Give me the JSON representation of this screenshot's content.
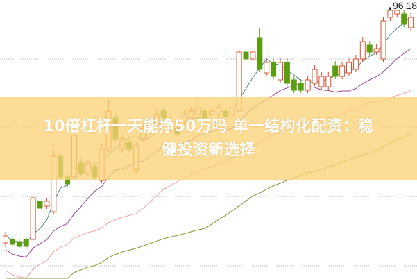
{
  "headline": {
    "line1": "10倍杠杆一天能挣50万吗 单一结构化配资：稳",
    "line2": "健投资新选择"
  },
  "chart_data": {
    "type": "candlestick",
    "ylim": [
      57.2,
      97.4
    ],
    "grid": "dotted horizontal",
    "max_label": "96.18",
    "colors": {
      "up": "#d9512c",
      "down": "#5a9e0f",
      "ma5": "#4a8a8a",
      "ma10": "#9b3fa0",
      "ma20": "#f0a0a0",
      "ma30": "#7a9a2a",
      "band": "#fcd278"
    },
    "moving_averages": [
      5,
      10,
      20,
      30
    ],
    "ohlc": [
      [
        62.4,
        63.4,
        64.0,
        61.8
      ],
      [
        62.9,
        62.2,
        63.3,
        61.9
      ],
      [
        62.6,
        61.9,
        62.9,
        61.6
      ],
      [
        62.9,
        61.9,
        63.4,
        61.5
      ],
      [
        62.9,
        68.9,
        69.6,
        62.5
      ],
      [
        68.4,
        67.4,
        69.0,
        67.0
      ],
      [
        67.7,
        68.4,
        68.9,
        67.3
      ],
      [
        66.9,
        74.9,
        75.8,
        66.5
      ],
      [
        74.9,
        71.9,
        75.4,
        71.5
      ],
      [
        71.9,
        70.9,
        72.5,
        70.5
      ],
      [
        71.9,
        77.9,
        78.6,
        71.5
      ],
      [
        73.9,
        72.4,
        74.5,
        72.0
      ],
      [
        72.4,
        73.9,
        74.4,
        72.0
      ],
      [
        73.4,
        71.9,
        74.0,
        71.5
      ],
      [
        71.4,
        75.9,
        76.6,
        71.0
      ],
      [
        75.9,
        81.4,
        83.0,
        75.4
      ],
      [
        80.4,
        77.4,
        81.0,
        77.0
      ],
      [
        75.9,
        77.4,
        78.0,
        75.4
      ],
      [
        76.9,
        75.9,
        77.4,
        75.5
      ],
      [
        72.9,
        76.4,
        77.0,
        72.4
      ],
      [
        77.4,
        78.9,
        79.5,
        77.0
      ],
      [
        78.4,
        79.4,
        80.0,
        78.0
      ],
      [
        79.4,
        80.9,
        81.6,
        79.0
      ],
      [
        81.4,
        80.4,
        82.0,
        80.0
      ],
      [
        78.9,
        79.9,
        80.5,
        78.4
      ],
      [
        78.9,
        78.1,
        79.4,
        77.6
      ],
      [
        79.9,
        80.9,
        81.5,
        79.4
      ],
      [
        80.4,
        81.4,
        82.0,
        80.0
      ],
      [
        80.9,
        81.9,
        83.4,
        80.5
      ],
      [
        81.4,
        80.4,
        82.0,
        80.0
      ],
      [
        80.9,
        81.4,
        82.0,
        80.5
      ],
      [
        80.9,
        81.9,
        82.5,
        80.4
      ],
      [
        81.4,
        80.6,
        82.0,
        80.0
      ],
      [
        80.9,
        81.9,
        82.5,
        80.4
      ],
      [
        81.4,
        89.9,
        90.5,
        81.0
      ],
      [
        89.9,
        88.9,
        90.5,
        88.5
      ],
      [
        88.9,
        89.9,
        90.6,
        88.4
      ],
      [
        91.9,
        87.4,
        93.4,
        87.0
      ],
      [
        86.9,
        88.4,
        89.0,
        86.4
      ],
      [
        88.4,
        86.4,
        89.0,
        86.0
      ],
      [
        85.9,
        88.4,
        89.0,
        85.4
      ],
      [
        88.4,
        85.4,
        89.0,
        85.0
      ],
      [
        85.9,
        84.4,
        86.5,
        84.0
      ],
      [
        85.4,
        84.4,
        86.0,
        84.0
      ],
      [
        84.4,
        85.9,
        86.5,
        84.0
      ],
      [
        85.4,
        87.4,
        88.0,
        85.0
      ],
      [
        84.9,
        86.4,
        87.0,
        84.5
      ],
      [
        84.9,
        86.4,
        87.0,
        84.5
      ],
      [
        87.9,
        86.4,
        88.6,
        86.0
      ],
      [
        86.4,
        87.9,
        88.5,
        86.0
      ],
      [
        86.9,
        88.4,
        89.0,
        86.5
      ],
      [
        87.4,
        88.9,
        89.5,
        87.0
      ],
      [
        88.9,
        91.4,
        92.0,
        88.5
      ],
      [
        90.9,
        89.9,
        91.5,
        89.4
      ],
      [
        89.9,
        90.4,
        91.0,
        89.5
      ],
      [
        88.9,
        94.4,
        95.0,
        88.5
      ],
      [
        94.9,
        95.9,
        96.18,
        94.4
      ],
      [
        95.4,
        95.9,
        96.0,
        95.0
      ],
      [
        95.4,
        93.9,
        96.0,
        93.5
      ],
      [
        93.4,
        94.9,
        95.5,
        93.0
      ]
    ]
  }
}
